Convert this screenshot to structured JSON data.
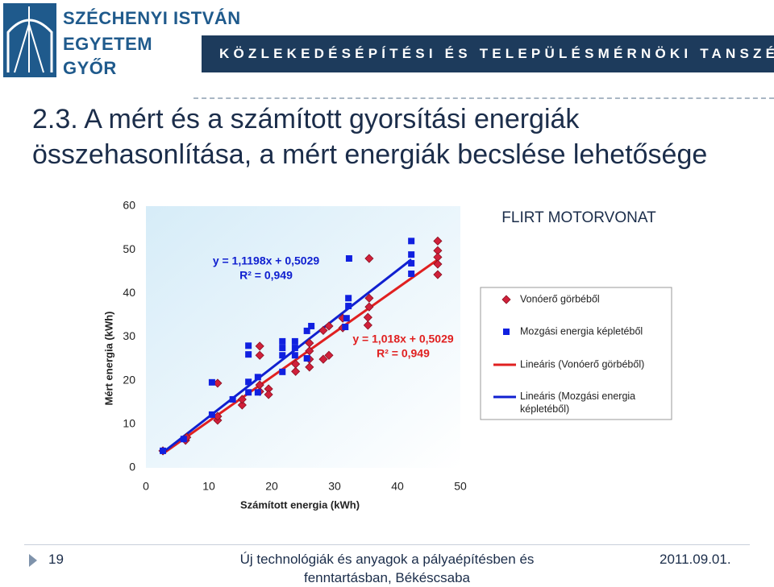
{
  "header": {
    "logo": [
      "SZÉCHENYI ISTVÁN",
      "EGYETEM",
      "GYŐR"
    ],
    "department": "KÖZLEKEDÉSÉPÍTÉSI ÉS TELEPÜLÉSMÉRNÖKI TANSZÉK"
  },
  "slide": {
    "title": "2.3. A mért és a számított gyorsítási energiák összehasonlítása, a mért energiák becslése lehetősége"
  },
  "chart_data": {
    "type": "scatter",
    "title": "FLIRT MOTORVONAT",
    "x_label": "Számított energia (kWh)",
    "y_label": "Mért energia (kWh)",
    "xlim": [
      0,
      50
    ],
    "ylim": [
      0,
      60
    ],
    "xticks": [
      0,
      10,
      20,
      30,
      40,
      50
    ],
    "yticks": [
      0,
      10,
      20,
      30,
      40,
      50,
      60
    ],
    "grid": false,
    "legend": "right",
    "series": [
      {
        "name": "Vonóerő görbéből",
        "color": "#d0203a",
        "marker": "diamond",
        "x": [
          2.7,
          6.3,
          6.5,
          11.4,
          11.4,
          11.4,
          15.3,
          15.3,
          18.1,
          18.1,
          18.1,
          18.1,
          19.5,
          19.5,
          23.8,
          23.8,
          26.0,
          26.0,
          26.0,
          26.0,
          28.2,
          28.2,
          29.1,
          29.1,
          31.3,
          31.3,
          35.3,
          35.3,
          35.5,
          35.5,
          35.5,
          46.4,
          46.4,
          46.4,
          46.4,
          46.4
        ],
        "values": [
          3.9,
          6.3,
          7.0,
          10.9,
          11.8,
          19.4,
          14.4,
          15.7,
          27.9,
          25.8,
          17.5,
          19.0,
          18.1,
          16.8,
          22.1,
          23.8,
          23.1,
          24.9,
          26.8,
          28.6,
          24.9,
          31.5,
          32.5,
          25.8,
          32.1,
          34.3,
          34.5,
          32.7,
          38.9,
          36.9,
          48.0,
          52.0,
          49.8,
          48.3,
          46.7,
          44.3
        ]
      },
      {
        "name": "Mozgási energia képletéből",
        "color": "#1020e0",
        "marker": "square",
        "x": [
          2.7,
          6.0,
          10.5,
          10.5,
          13.8,
          16.3,
          16.3,
          16.3,
          16.3,
          17.8,
          17.8,
          21.7,
          21.7,
          21.7,
          21.7,
          23.7,
          23.7,
          23.7,
          25.6,
          25.6,
          26.3,
          31.7,
          31.9,
          32.2,
          32.2,
          32.3,
          42.2,
          42.2,
          42.2,
          42.2
        ],
        "values": [
          3.9,
          6.6,
          12.2,
          19.6,
          15.7,
          17.3,
          19.7,
          26.0,
          28.0,
          17.3,
          20.8,
          22.0,
          25.8,
          27.5,
          29.0,
          25.8,
          29.0,
          27.5,
          25.1,
          31.4,
          32.5,
          32.3,
          34.3,
          37.1,
          38.9,
          48.0,
          52.0,
          48.9,
          46.9,
          44.5
        ]
      }
    ],
    "trendlines": [
      {
        "name": "Lineáris (Vonóerő görbéből)",
        "color": "#e02020",
        "slope": 1.018,
        "intercept": 0.5029,
        "x_range": [
          2.7,
          46.4
        ]
      },
      {
        "name": "Lineáris (Mozgási energia képletéből)",
        "color": "#1020d0",
        "slope": 1.1198,
        "intercept": 0.5029,
        "x_range": [
          2.7,
          42.2
        ]
      }
    ],
    "annotations": [
      {
        "text": [
          "y = 1,1198x + 0,5029",
          "R² = 0,949"
        ],
        "color": "#1020d0"
      },
      {
        "text": [
          "y = 1,018x + 0,5029",
          "R² = 0,949"
        ],
        "color": "#e02020"
      }
    ]
  },
  "footer": {
    "page": "19",
    "text": [
      "Új technológiák és anyagok a pályaépítésben és",
      "fenntartásban, Békéscsaba"
    ],
    "date": "2011.09.01."
  }
}
